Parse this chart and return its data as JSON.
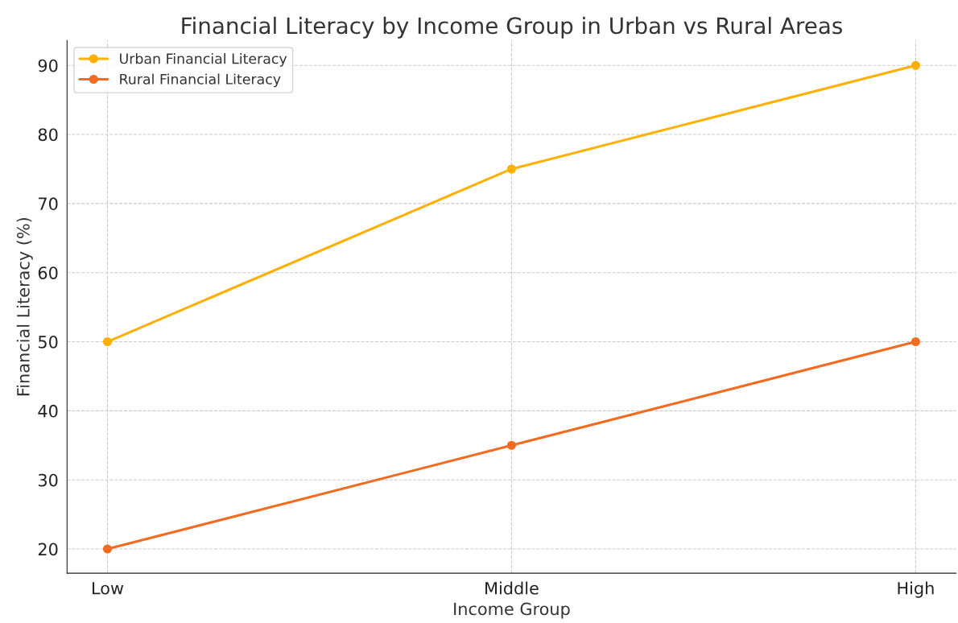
{
  "chart_data": {
    "type": "line",
    "title": "Financial Literacy by Income Group in Urban vs Rural Areas",
    "xlabel": "Income Group",
    "ylabel": "Financial Literacy (%)",
    "categories": [
      "Low",
      "Middle",
      "High"
    ],
    "series": [
      {
        "name": "Urban Financial Literacy",
        "color": "#ffb000",
        "values": [
          50,
          75,
          90
        ]
      },
      {
        "name": "Rural Financial Literacy",
        "color": "#f26b21",
        "values": [
          20,
          35,
          50
        ]
      }
    ],
    "ylim": [
      16.5,
      93.6
    ],
    "yticks": [
      20,
      30,
      40,
      50,
      60,
      70,
      80,
      90
    ],
    "grid": true,
    "legend": "top left",
    "marker": "circle",
    "line_style": "solid"
  }
}
